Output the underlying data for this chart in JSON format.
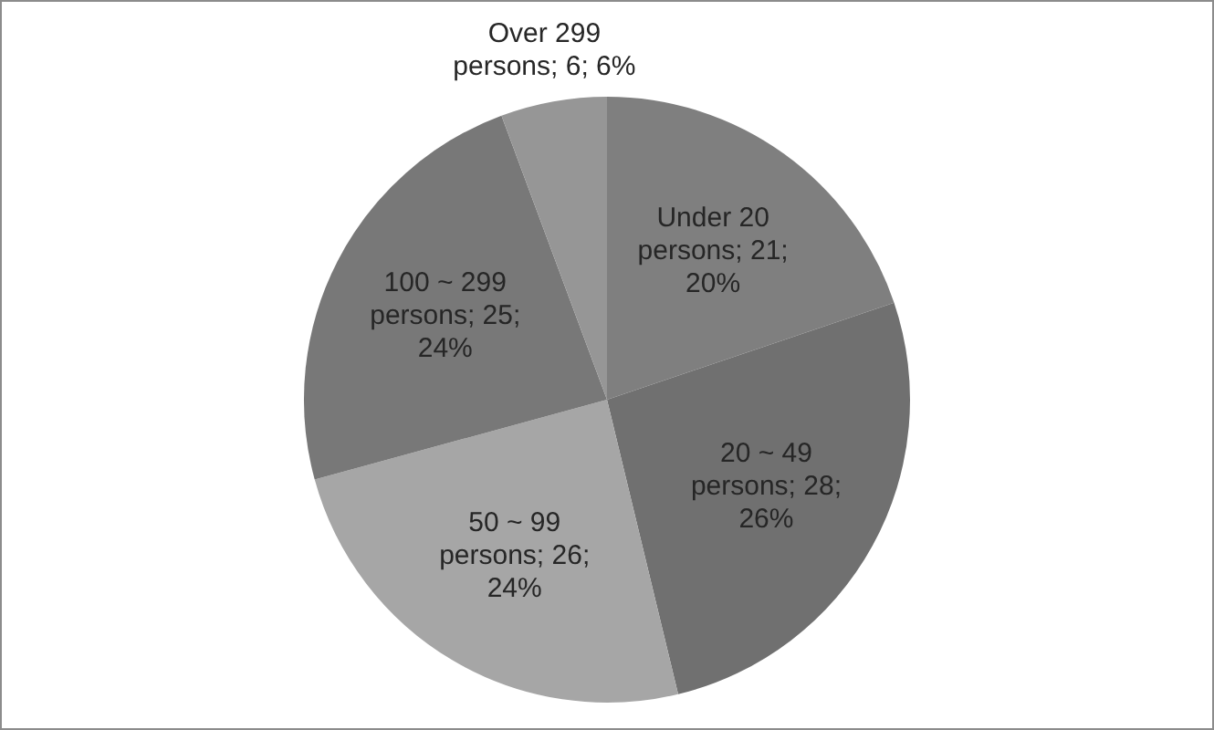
{
  "chart_data": {
    "type": "pie",
    "categories": [
      "Under 20 persons",
      "20 ~ 49 persons",
      "50 ~ 99 persons",
      "100 ~ 299 persons",
      "Over 299 persons"
    ],
    "values": [
      21,
      28,
      26,
      25,
      6
    ],
    "value_labels": [
      "21; 20%",
      "28; 26%",
      "26; 24%",
      "25; 24%",
      "6; 6%"
    ],
    "colors": [
      "#7f7f7f",
      "#707070",
      "#a6a6a6",
      "#787878",
      "#969696"
    ]
  }
}
